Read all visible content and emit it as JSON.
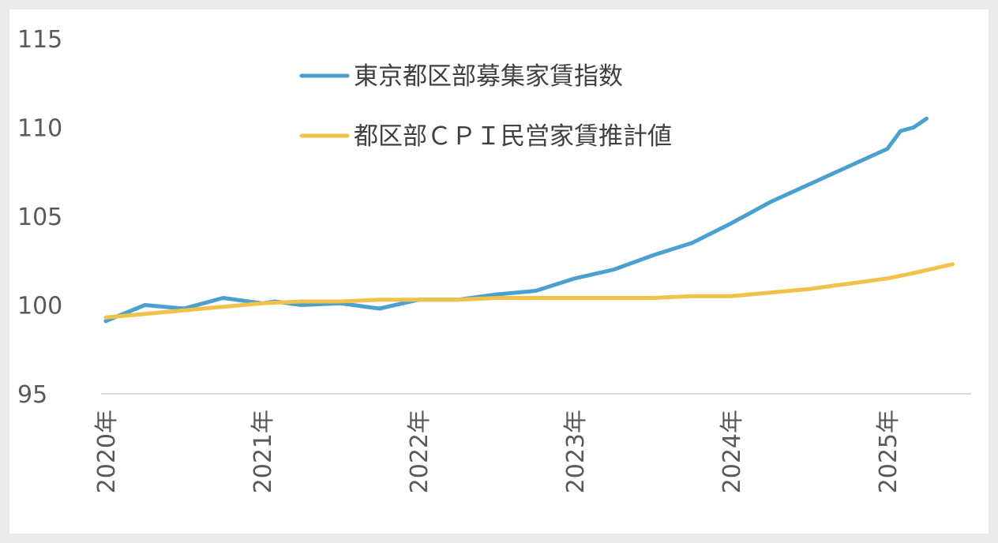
{
  "chart_data": {
    "type": "line",
    "y_ticks": [
      "95",
      "100",
      "105",
      "110",
      "115"
    ],
    "ylim": [
      95,
      115
    ],
    "x_tick_labels": [
      "2020年",
      "2021年",
      "2022年",
      "2023年",
      "2024年",
      "2025年"
    ],
    "x_tick_years": [
      2020,
      2021,
      2022,
      2023,
      2024,
      2025
    ],
    "xlim": [
      "2020-01",
      "2025-06"
    ],
    "grid": "none",
    "legend_position": "top-center",
    "series": [
      {
        "name": "東京都区部募集家賃指数",
        "color": "#4aa0cf",
        "x": [
          "2020-01",
          "2020-04",
          "2020-07",
          "2020-10",
          "2021-01",
          "2021-02",
          "2021-04",
          "2021-07",
          "2021-10",
          "2022-01",
          "2022-04",
          "2022-07",
          "2022-10",
          "2023-01",
          "2023-04",
          "2023-07",
          "2023-10",
          "2024-01",
          "2024-04",
          "2024-07",
          "2024-10",
          "2025-01",
          "2025-02",
          "2025-03",
          "2025-04"
        ],
        "values": [
          99.1,
          100.0,
          99.8,
          100.4,
          100.1,
          100.2,
          100.0,
          100.1,
          99.8,
          100.3,
          100.3,
          100.6,
          100.8,
          101.5,
          102.0,
          102.8,
          103.5,
          104.6,
          105.8,
          106.8,
          107.8,
          108.8,
          109.8,
          110.0,
          110.5
        ]
      },
      {
        "name": "都区部ＣＰＩ民営家賃推計値",
        "color": "#f2c14a",
        "x": [
          "2020-01",
          "2020-04",
          "2020-07",
          "2020-10",
          "2021-01",
          "2021-04",
          "2021-07",
          "2021-10",
          "2022-01",
          "2022-04",
          "2022-07",
          "2022-10",
          "2023-01",
          "2023-04",
          "2023-07",
          "2023-10",
          "2024-01",
          "2024-04",
          "2024-07",
          "2024-10",
          "2025-01",
          "2025-03",
          "2025-06"
        ],
        "values": [
          99.3,
          99.5,
          99.7,
          99.9,
          100.1,
          100.2,
          100.2,
          100.3,
          100.3,
          100.3,
          100.4,
          100.4,
          100.4,
          100.4,
          100.4,
          100.5,
          100.5,
          100.7,
          100.9,
          101.2,
          101.5,
          101.8,
          102.3
        ]
      }
    ]
  }
}
